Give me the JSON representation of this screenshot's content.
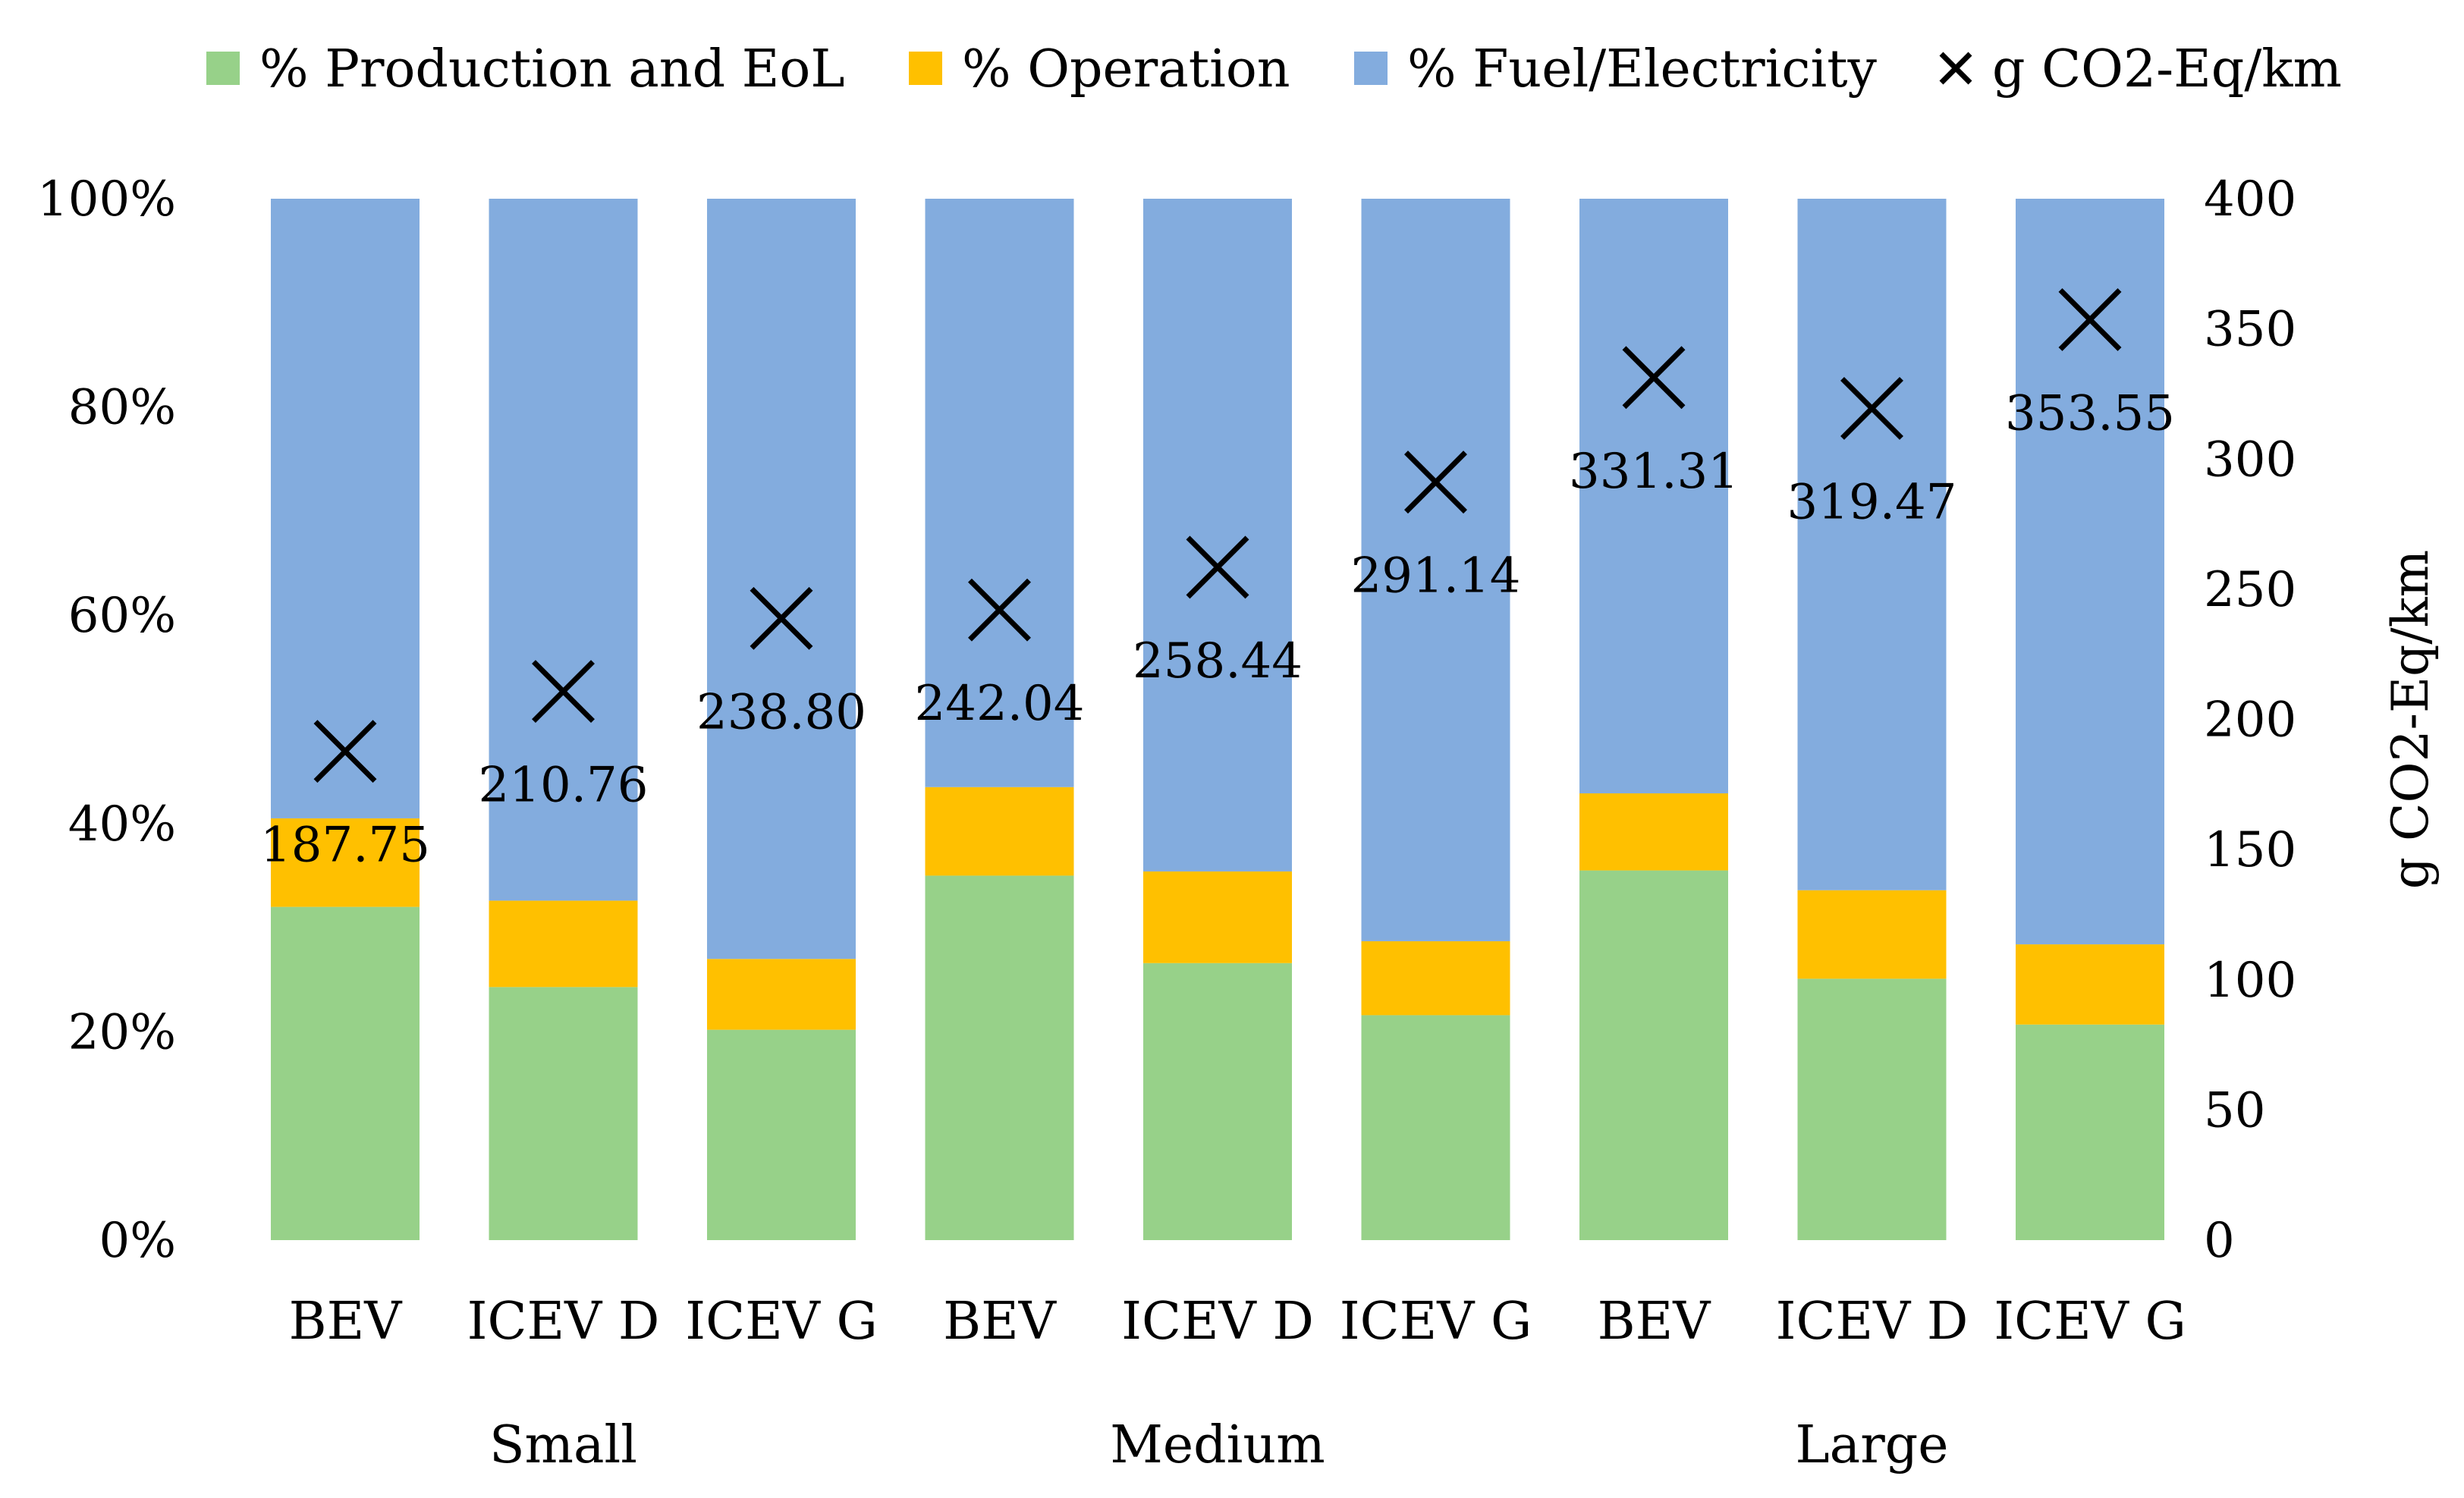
{
  "chart_data": {
    "type": "bar",
    "stacked": true,
    "stack_normalization": "percent",
    "categories": [
      "BEV",
      "ICEV D",
      "ICEV G",
      "BEV",
      "ICEV D",
      "ICEV G",
      "BEV",
      "ICEV D",
      "ICEV G"
    ],
    "groups": [
      {
        "label": "Small",
        "categories": [
          0,
          1,
          2
        ]
      },
      {
        "label": "Medium",
        "categories": [
          3,
          4,
          5
        ]
      },
      {
        "label": "Large",
        "categories": [
          6,
          7,
          8
        ]
      }
    ],
    "series": [
      {
        "name": "% Production and EoL",
        "color": "#97D189",
        "values": [
          32,
          24.3,
          20.2,
          35,
          26.6,
          21.6,
          35.5,
          25.1,
          20.7
        ]
      },
      {
        "name": "% Operation",
        "color": "#FFC000",
        "values": [
          8.5,
          8.3,
          6.8,
          8.5,
          8.8,
          7.1,
          7.4,
          8.5,
          7.7
        ]
      },
      {
        "name": "% Fuel/Electricity",
        "color": "#83ACDE",
        "values": [
          59.5,
          67.4,
          73,
          56.5,
          64.6,
          71.3,
          57.1,
          66.4,
          71.6
        ]
      }
    ],
    "secondary_series": {
      "name": "g CO2-Eq/km",
      "type": "scatter",
      "marker": "x",
      "values": [
        187.75,
        210.76,
        238.8,
        242.04,
        258.44,
        291.14,
        331.31,
        319.47,
        353.55
      ],
      "labels": [
        "187.75",
        "210.76",
        "238.80",
        "242.04",
        "258.44",
        "291.14",
        "331.31",
        "319.47",
        "353.55"
      ]
    },
    "y_left": {
      "ticks": [
        "0%",
        "20%",
        "40%",
        "60%",
        "80%",
        "100%"
      ],
      "ylim": [
        0,
        100
      ]
    },
    "y_right": {
      "label": "g CO2-Eq/km",
      "ticks": [
        "0",
        "50",
        "100",
        "150",
        "200",
        "250",
        "300",
        "350",
        "400"
      ],
      "ylim": [
        0,
        400
      ]
    },
    "legend": {
      "position": "top",
      "entries": [
        "% Production and EoL",
        "% Operation",
        "% Fuel/Electricity",
        "g CO2-Eq/km"
      ]
    },
    "grid": false
  }
}
